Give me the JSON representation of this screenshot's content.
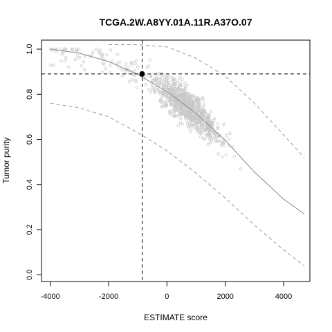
{
  "chart_data": {
    "type": "scatter",
    "title": "TCGA.2W.A8YY.01A.11R.A37O.07",
    "xlabel": "ESTIMATE score",
    "ylabel": "Tumor purity",
    "xlim": [
      -4300,
      4900
    ],
    "ylim": [
      -0.03,
      1.04
    ],
    "x_ticks": [
      -4000,
      -2000,
      0,
      2000,
      4000
    ],
    "x_tick_labels": [
      "-4000",
      "-2000",
      "0",
      "2000",
      "4000"
    ],
    "y_ticks": [
      0.0,
      0.2,
      0.4,
      0.6,
      0.8,
      1.0
    ],
    "y_tick_labels": [
      "0.0",
      "0.2",
      "0.4",
      "0.6",
      "0.8",
      "1.0"
    ],
    "grid": false,
    "highlight_point": {
      "x": -850,
      "y": 0.89
    },
    "series": [
      {
        "style": "solid-curve",
        "x": [
          -4000,
          -3000,
          -2000,
          -1000,
          0,
          1000,
          2000,
          3000,
          4000,
          4700
        ],
        "y": [
          1.0,
          0.982,
          0.945,
          0.888,
          0.812,
          0.715,
          0.595,
          0.455,
          0.335,
          0.27
        ]
      },
      {
        "style": "dashed-curve",
        "x": [
          -2000,
          -1000,
          0,
          1000,
          2000,
          3000,
          4000,
          4700
        ],
        "y": [
          1.02,
          1.02,
          1.01,
          0.96,
          0.88,
          0.76,
          0.62,
          0.52
        ]
      },
      {
        "style": "dashed-curve",
        "x": [
          -4000,
          -3000,
          -2000,
          -1000,
          0,
          1000,
          2000,
          3000,
          4000,
          4700
        ],
        "y": [
          0.76,
          0.74,
          0.7,
          0.63,
          0.55,
          0.45,
          0.34,
          0.22,
          0.11,
          0.04
        ]
      }
    ],
    "scatter_color": "#c8c8c8"
  }
}
